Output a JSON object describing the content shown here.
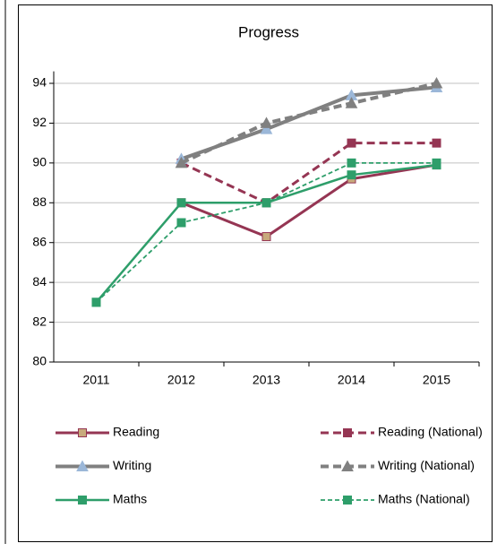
{
  "chart_data": {
    "type": "line",
    "title": "Progress",
    "categories": [
      "2011",
      "2012",
      "2013",
      "2014",
      "2015"
    ],
    "ylim": [
      80,
      94.6
    ],
    "yticks": [
      80,
      82,
      84,
      86,
      88,
      90,
      92,
      94
    ],
    "grid": true,
    "series": [
      {
        "name": "Reading",
        "color": "#953553",
        "marker": "square",
        "marker_color": "#c8aa7c",
        "dash": false,
        "width": 3,
        "values": [
          null,
          88,
          86.3,
          89.2,
          89.9
        ]
      },
      {
        "name": "Reading (National)",
        "color": "#953553",
        "marker": "square",
        "marker_color": "#953553",
        "dash": true,
        "width": 3,
        "values": [
          null,
          90,
          88,
          91,
          91
        ]
      },
      {
        "name": "Writing",
        "color": "#808080",
        "marker": "triangle",
        "marker_color": "#9bb7d8",
        "dash": false,
        "width": 4,
        "values": [
          null,
          90.2,
          91.7,
          93.4,
          93.8
        ]
      },
      {
        "name": "Writing (National)",
        "color": "#808080",
        "marker": "triangle",
        "marker_color": "#808080",
        "dash": true,
        "width": 4,
        "values": [
          null,
          90,
          92,
          93,
          94
        ]
      },
      {
        "name": "Maths",
        "color": "#2e9e6a",
        "marker": "square",
        "marker_color": "#2e9e6a",
        "dash": false,
        "width": 2.5,
        "values": [
          83,
          88,
          88,
          89.4,
          89.9
        ]
      },
      {
        "name": "Maths (National)",
        "color": "#2e9e6a",
        "marker": "square",
        "marker_color": "#2e9e6a",
        "dash": true,
        "width": 1.8,
        "values": [
          83,
          87,
          88,
          90,
          90
        ]
      }
    ]
  }
}
